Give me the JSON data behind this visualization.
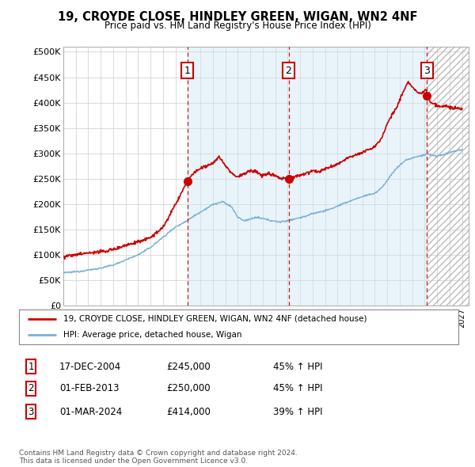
{
  "title": "19, CROYDE CLOSE, HINDLEY GREEN, WIGAN, WN2 4NF",
  "subtitle": "Price paid vs. HM Land Registry's House Price Index (HPI)",
  "ylabel_ticks": [
    "£0",
    "£50K",
    "£100K",
    "£150K",
    "£200K",
    "£250K",
    "£300K",
    "£350K",
    "£400K",
    "£450K",
    "£500K"
  ],
  "ytick_values": [
    0,
    50000,
    100000,
    150000,
    200000,
    250000,
    300000,
    350000,
    400000,
    450000,
    500000
  ],
  "ylim": [
    0,
    510000
  ],
  "xlim_start": 1995.0,
  "xlim_end": 2027.5,
  "sale_dates": [
    2004.96,
    2013.08,
    2024.17
  ],
  "sale_prices": [
    245000,
    250000,
    414000
  ],
  "sale_labels": [
    "1",
    "2",
    "3"
  ],
  "legend_line1": "19, CROYDE CLOSE, HINDLEY GREEN, WIGAN, WN2 4NF (detached house)",
  "legend_line2": "HPI: Average price, detached house, Wigan",
  "table_data": [
    [
      "1",
      "17-DEC-2004",
      "£245,000",
      "45% ↑ HPI"
    ],
    [
      "2",
      "01-FEB-2013",
      "£250,000",
      "45% ↑ HPI"
    ],
    [
      "3",
      "01-MAR-2024",
      "£414,000",
      "39% ↑ HPI"
    ]
  ],
  "footer": "Contains HM Land Registry data © Crown copyright and database right 2024.\nThis data is licensed under the Open Government Licence v3.0.",
  "bg_color": "#ffffff",
  "plot_bg_color": "#ffffff",
  "grid_color": "#cccccc",
  "hpi_color": "#7ab0d4",
  "price_color": "#cc0000",
  "sale_marker_color": "#cc0000",
  "vline_color": "#cc0000",
  "shade_color": "#ddeeff",
  "future_hatch_color": "#bbbbbb"
}
